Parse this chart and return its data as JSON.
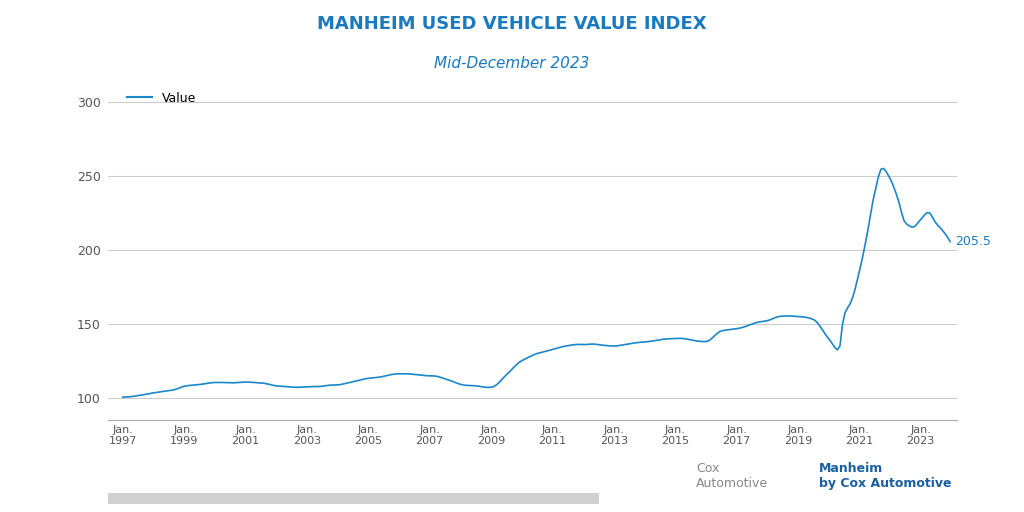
{
  "title": "MANHEIM USED VEHICLE VALUE INDEX",
  "subtitle": "Mid-December 2023",
  "title_color": "#1a7abf",
  "subtitle_color": "#1a7abf",
  "line_color": "#1a87c8",
  "legend_label": "Value",
  "last_value_label": "205.5",
  "last_value_color": "#1a7abf",
  "background_color": "#ffffff",
  "yticks": [
    100,
    150,
    200,
    250,
    300
  ],
  "xtick_years": [
    1997,
    1999,
    2001,
    2003,
    2005,
    2007,
    2009,
    2011,
    2013,
    2015,
    2017,
    2019,
    2021,
    2023
  ],
  "ylim": [
    85,
    310
  ],
  "xlim_start": 1996.5,
  "xlim_end": 2024.2,
  "footer_bar_color": "#d0d0d0",
  "grid_color": "#cccccc"
}
